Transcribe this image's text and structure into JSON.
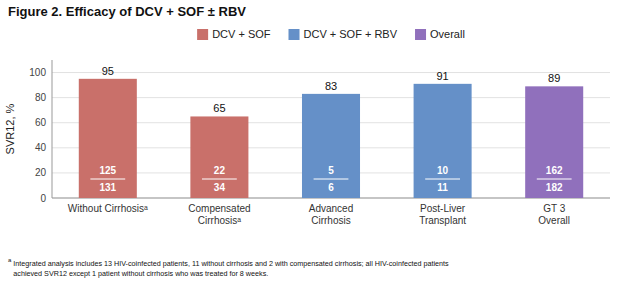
{
  "chart_data": {
    "type": "bar",
    "title": "Figure 2. Efficacy of DCV + SOF ± RBV",
    "ylabel": "SVR12, %",
    "categories": [
      "Without Cirrhosisᵃ",
      "Compensated\nCirrhosisᵃ",
      "Advanced\nCirrhosis",
      "Post-Liver\nTransplant",
      "GT 3\nOverall"
    ],
    "values": [
      95,
      65,
      83,
      91,
      89
    ],
    "colors": [
      "#c9706a",
      "#c9706a",
      "#6590c8",
      "#6590c8",
      "#9070bc"
    ],
    "numerators": [
      125,
      22,
      5,
      10,
      162
    ],
    "denominators": [
      131,
      34,
      6,
      11,
      182
    ],
    "groups": [
      {
        "name": "DCV + SOF",
        "color": "#c9706a"
      },
      {
        "name": "DCV + SOF + RBV",
        "color": "#6590c8"
      },
      {
        "name": "Overall",
        "color": "#9070bc"
      }
    ],
    "legend": "top",
    "ylim": [
      0,
      110
    ],
    "yticks": [
      0,
      20,
      40,
      60,
      80,
      100
    ],
    "grid": true,
    "data_labels": true,
    "footnote_super": "a",
    "footnote": "Integrated analysis includes 13 HIV-coinfected patients, 11 without cirrhosis and 2 with compensated cirrhosis; all HIV-coinfected patients\nachieved SVR12 except 1 patient without cirrhosis who was treated for 8 weeks."
  }
}
